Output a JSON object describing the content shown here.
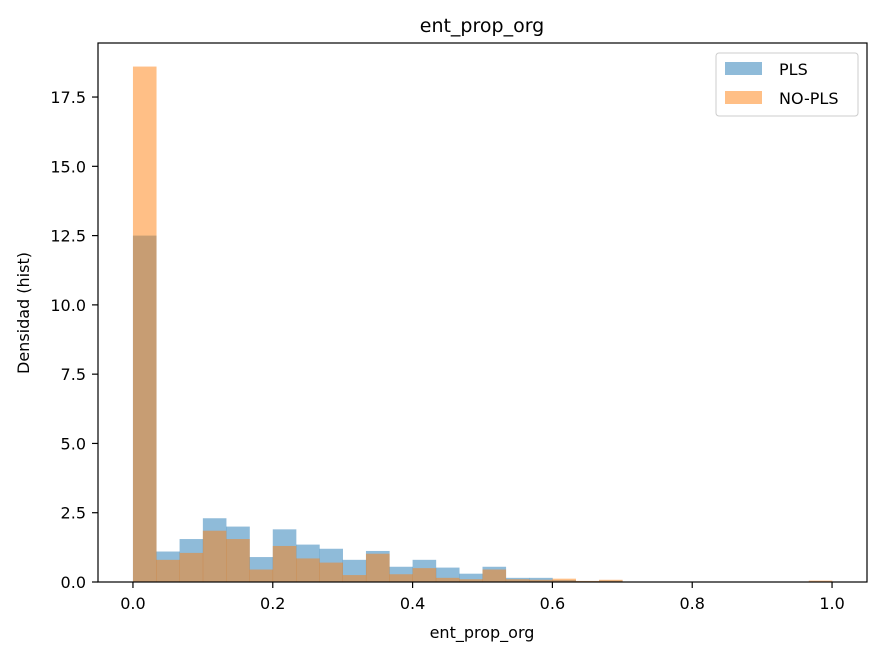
{
  "colors": {
    "series_1": "#1f77b4",
    "series_2": "#ff7f0e",
    "axes": "#000000",
    "background": "#ffffff"
  },
  "chart_data": {
    "type": "bar",
    "title": "ent_prop_org",
    "xlabel": "ent_prop_org",
    "ylabel": "Densidad (hist)",
    "xlim": [
      -0.05,
      1.05
    ],
    "ylim": [
      0,
      19.45
    ],
    "bin_edges": [
      0.0,
      0.0333,
      0.0667,
      0.1,
      0.1333,
      0.1667,
      0.2,
      0.2333,
      0.2667,
      0.3,
      0.3333,
      0.3667,
      0.4,
      0.4333,
      0.4667,
      0.5,
      0.5333,
      0.5667,
      0.6,
      0.6333,
      0.6667,
      0.7,
      0.7333,
      0.7667,
      0.8,
      0.8333,
      0.8667,
      0.9,
      0.9333,
      0.9667,
      1.0
    ],
    "series": [
      {
        "name": "PLS",
        "values": [
          12.5,
          1.1,
          1.55,
          2.3,
          2.0,
          0.9,
          1.9,
          1.35,
          1.2,
          0.8,
          1.12,
          0.55,
          0.8,
          0.52,
          0.3,
          0.55,
          0.15,
          0.15,
          0.07,
          0.03,
          0.05,
          0.0,
          0.0,
          0.0,
          0.0,
          0.0,
          0.0,
          0.0,
          0.0,
          0.0
        ],
        "opacity": 0.5
      },
      {
        "name": "NO-PLS",
        "values": [
          18.6,
          0.8,
          1.05,
          1.85,
          1.55,
          0.45,
          1.3,
          0.85,
          0.7,
          0.25,
          1.02,
          0.28,
          0.5,
          0.15,
          0.1,
          0.45,
          0.1,
          0.08,
          0.12,
          0.04,
          0.08,
          0.0,
          0.0,
          0.0,
          0.0,
          0.0,
          0.0,
          0.0,
          0.0,
          0.05
        ],
        "opacity": 0.5
      }
    ],
    "x_ticks": [
      0.0,
      0.2,
      0.4,
      0.6,
      0.8,
      1.0
    ],
    "x_tick_labels": [
      "0.0",
      "0.2",
      "0.4",
      "0.6",
      "0.8",
      "1.0"
    ],
    "y_ticks": [
      0.0,
      2.5,
      5.0,
      7.5,
      10.0,
      12.5,
      15.0,
      17.5
    ],
    "y_tick_labels": [
      "0.0",
      "2.5",
      "5.0",
      "7.5",
      "10.0",
      "12.5",
      "15.0",
      "17.5"
    ],
    "grid": false,
    "legend": {
      "position": "top-right",
      "entries": [
        "PLS",
        "NO-PLS"
      ]
    }
  }
}
